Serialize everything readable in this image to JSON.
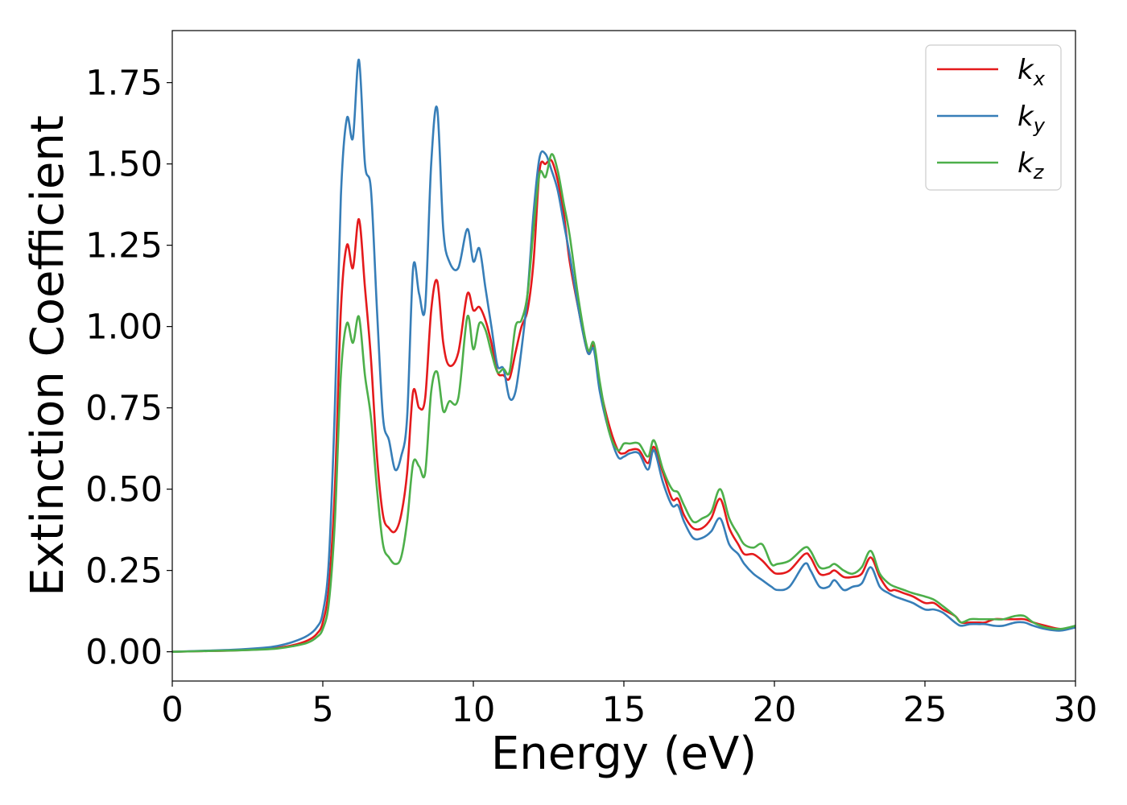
{
  "chart_data": {
    "type": "line",
    "title": "",
    "xlabel": "Energy (eV)",
    "ylabel": "Extinction Coefficient",
    "xlim": [
      0,
      30
    ],
    "ylim": [
      -0.09,
      1.91
    ],
    "xticks": [
      0,
      5,
      10,
      15,
      20,
      25,
      30
    ],
    "xtick_labels": [
      "0",
      "5",
      "10",
      "15",
      "20",
      "25",
      "30"
    ],
    "yticks": [
      0.0,
      0.25,
      0.5,
      0.75,
      1.0,
      1.25,
      1.5,
      1.75
    ],
    "ytick_labels": [
      "0.00",
      "0.25",
      "0.50",
      "0.75",
      "1.00",
      "1.25",
      "1.50",
      "1.75"
    ],
    "grid": false,
    "legend_position": "top-right",
    "series": [
      {
        "name": "kx",
        "label_base": "k",
        "label_sub": "x",
        "color": "#e41a1c",
        "x": [
          0,
          1,
          2,
          3,
          3.5,
          4,
          4.5,
          4.8,
          5.0,
          5.2,
          5.4,
          5.6,
          5.8,
          6.0,
          6.2,
          6.4,
          6.6,
          6.8,
          7.0,
          7.2,
          7.4,
          7.6,
          7.8,
          8.0,
          8.2,
          8.4,
          8.6,
          8.8,
          9.0,
          9.2,
          9.5,
          9.8,
          10.0,
          10.2,
          10.4,
          10.6,
          10.8,
          11.0,
          11.2,
          11.4,
          11.6,
          11.8,
          12.0,
          12.2,
          12.4,
          12.6,
          12.8,
          13.0,
          13.2,
          13.5,
          13.8,
          14.0,
          14.2,
          14.5,
          14.8,
          15.0,
          15.2,
          15.5,
          15.8,
          16.0,
          16.3,
          16.6,
          16.8,
          17.0,
          17.3,
          17.6,
          17.9,
          18.2,
          18.5,
          18.8,
          19.0,
          19.3,
          19.6,
          19.9,
          20.1,
          20.5,
          21.0,
          21.2,
          21.5,
          21.8,
          22.0,
          22.3,
          22.6,
          22.9,
          23.2,
          23.5,
          23.8,
          24.0,
          24.3,
          24.6,
          25.0,
          25.3,
          25.6,
          26.0,
          26.2,
          26.5,
          26.8,
          27.0,
          27.3,
          27.6,
          28.0,
          28.3,
          28.6,
          29.0,
          29.5,
          30.0
        ],
        "y": [
          0.0,
          0.002,
          0.004,
          0.008,
          0.012,
          0.02,
          0.035,
          0.055,
          0.09,
          0.2,
          0.5,
          1.05,
          1.25,
          1.18,
          1.33,
          1.12,
          0.9,
          0.6,
          0.42,
          0.38,
          0.37,
          0.42,
          0.55,
          0.8,
          0.75,
          0.78,
          1.05,
          1.14,
          0.95,
          0.88,
          0.92,
          1.1,
          1.05,
          1.06,
          1.02,
          0.95,
          0.86,
          0.85,
          0.84,
          0.92,
          1.0,
          1.05,
          1.2,
          1.48,
          1.5,
          1.51,
          1.45,
          1.35,
          1.2,
          1.05,
          0.92,
          0.94,
          0.82,
          0.7,
          0.62,
          0.61,
          0.62,
          0.62,
          0.58,
          0.63,
          0.55,
          0.47,
          0.47,
          0.42,
          0.38,
          0.38,
          0.41,
          0.47,
          0.38,
          0.33,
          0.3,
          0.3,
          0.28,
          0.25,
          0.24,
          0.25,
          0.3,
          0.29,
          0.24,
          0.24,
          0.25,
          0.23,
          0.23,
          0.24,
          0.29,
          0.23,
          0.19,
          0.19,
          0.18,
          0.17,
          0.15,
          0.15,
          0.13,
          0.11,
          0.09,
          0.09,
          0.09,
          0.09,
          0.1,
          0.1,
          0.1,
          0.1,
          0.09,
          0.08,
          0.07,
          0.075
        ]
      },
      {
        "name": "ky",
        "label_base": "k",
        "label_sub": "y",
        "color": "#377eb8",
        "x": [
          0,
          1,
          2,
          3,
          3.5,
          4,
          4.5,
          4.8,
          5.0,
          5.2,
          5.4,
          5.6,
          5.8,
          6.0,
          6.2,
          6.4,
          6.6,
          6.8,
          7.0,
          7.2,
          7.4,
          7.6,
          7.8,
          8.0,
          8.2,
          8.4,
          8.6,
          8.8,
          9.0,
          9.2,
          9.5,
          9.8,
          10.0,
          10.2,
          10.4,
          10.6,
          10.8,
          11.0,
          11.2,
          11.4,
          11.6,
          11.8,
          12.0,
          12.2,
          12.4,
          12.6,
          12.8,
          13.0,
          13.2,
          13.5,
          13.8,
          14.0,
          14.2,
          14.5,
          14.8,
          15.0,
          15.2,
          15.5,
          15.8,
          16.0,
          16.3,
          16.6,
          16.8,
          17.0,
          17.3,
          17.6,
          17.9,
          18.2,
          18.5,
          18.8,
          19.0,
          19.3,
          19.6,
          19.9,
          20.1,
          20.5,
          21.0,
          21.2,
          21.5,
          21.8,
          22.0,
          22.3,
          22.6,
          22.9,
          23.2,
          23.5,
          23.8,
          24.0,
          24.3,
          24.6,
          25.0,
          25.3,
          25.6,
          26.0,
          26.2,
          26.5,
          26.8,
          27.0,
          27.3,
          27.6,
          28.0,
          28.3,
          28.6,
          29.0,
          29.5,
          30.0
        ],
        "y": [
          0.0,
          0.003,
          0.006,
          0.012,
          0.018,
          0.03,
          0.05,
          0.075,
          0.12,
          0.28,
          0.75,
          1.4,
          1.64,
          1.58,
          1.82,
          1.5,
          1.42,
          1.05,
          0.72,
          0.65,
          0.56,
          0.6,
          0.72,
          1.18,
          1.1,
          1.06,
          1.5,
          1.67,
          1.3,
          1.2,
          1.18,
          1.3,
          1.2,
          1.24,
          1.12,
          1.0,
          0.88,
          0.87,
          0.78,
          0.8,
          0.93,
          1.1,
          1.35,
          1.52,
          1.53,
          1.48,
          1.42,
          1.32,
          1.22,
          1.05,
          0.92,
          0.93,
          0.8,
          0.68,
          0.6,
          0.6,
          0.61,
          0.61,
          0.56,
          0.62,
          0.52,
          0.45,
          0.45,
          0.4,
          0.35,
          0.35,
          0.37,
          0.41,
          0.33,
          0.3,
          0.27,
          0.24,
          0.22,
          0.2,
          0.19,
          0.2,
          0.27,
          0.25,
          0.2,
          0.2,
          0.22,
          0.19,
          0.2,
          0.21,
          0.26,
          0.2,
          0.18,
          0.17,
          0.16,
          0.15,
          0.13,
          0.13,
          0.12,
          0.09,
          0.08,
          0.085,
          0.085,
          0.085,
          0.08,
          0.08,
          0.09,
          0.09,
          0.08,
          0.07,
          0.065,
          0.075
        ]
      },
      {
        "name": "kz",
        "label_base": "k",
        "label_sub": "z",
        "color": "#4daf4a",
        "x": [
          0,
          1,
          2,
          3,
          3.5,
          4,
          4.5,
          4.8,
          5.0,
          5.2,
          5.4,
          5.6,
          5.8,
          6.0,
          6.2,
          6.4,
          6.6,
          6.8,
          7.0,
          7.2,
          7.4,
          7.6,
          7.8,
          8.0,
          8.2,
          8.4,
          8.6,
          8.8,
          9.0,
          9.2,
          9.5,
          9.8,
          10.0,
          10.2,
          10.4,
          10.6,
          10.8,
          11.0,
          11.2,
          11.4,
          11.6,
          11.8,
          12.0,
          12.2,
          12.4,
          12.6,
          12.8,
          13.0,
          13.2,
          13.5,
          13.8,
          14.0,
          14.2,
          14.5,
          14.8,
          15.0,
          15.2,
          15.5,
          15.8,
          16.0,
          16.3,
          16.6,
          16.8,
          17.0,
          17.3,
          17.6,
          17.9,
          18.2,
          18.5,
          18.8,
          19.0,
          19.3,
          19.6,
          19.9,
          20.1,
          20.5,
          21.0,
          21.2,
          21.5,
          21.8,
          22.0,
          22.3,
          22.6,
          22.9,
          23.2,
          23.5,
          23.8,
          24.0,
          24.3,
          24.6,
          25.0,
          25.3,
          25.6,
          26.0,
          26.2,
          26.5,
          26.8,
          27.0,
          27.3,
          27.6,
          28.0,
          28.3,
          28.6,
          29.0,
          29.5,
          30.0
        ],
        "y": [
          0.0,
          0.002,
          0.004,
          0.007,
          0.01,
          0.017,
          0.028,
          0.045,
          0.07,
          0.15,
          0.4,
          0.85,
          1.01,
          0.95,
          1.03,
          0.85,
          0.72,
          0.5,
          0.33,
          0.29,
          0.27,
          0.29,
          0.4,
          0.58,
          0.57,
          0.55,
          0.8,
          0.86,
          0.74,
          0.77,
          0.78,
          1.03,
          0.93,
          1.01,
          0.99,
          0.92,
          0.86,
          0.87,
          0.86,
          1.0,
          1.02,
          1.1,
          1.3,
          1.47,
          1.46,
          1.53,
          1.48,
          1.38,
          1.28,
          1.08,
          0.93,
          0.95,
          0.83,
          0.68,
          0.62,
          0.64,
          0.64,
          0.64,
          0.6,
          0.65,
          0.56,
          0.5,
          0.49,
          0.45,
          0.4,
          0.41,
          0.43,
          0.5,
          0.41,
          0.36,
          0.33,
          0.32,
          0.33,
          0.27,
          0.27,
          0.28,
          0.32,
          0.31,
          0.26,
          0.26,
          0.27,
          0.25,
          0.24,
          0.26,
          0.31,
          0.24,
          0.21,
          0.2,
          0.19,
          0.18,
          0.17,
          0.16,
          0.14,
          0.11,
          0.09,
          0.1,
          0.1,
          0.1,
          0.1,
          0.1,
          0.11,
          0.11,
          0.09,
          0.075,
          0.07,
          0.08
        ]
      }
    ]
  }
}
